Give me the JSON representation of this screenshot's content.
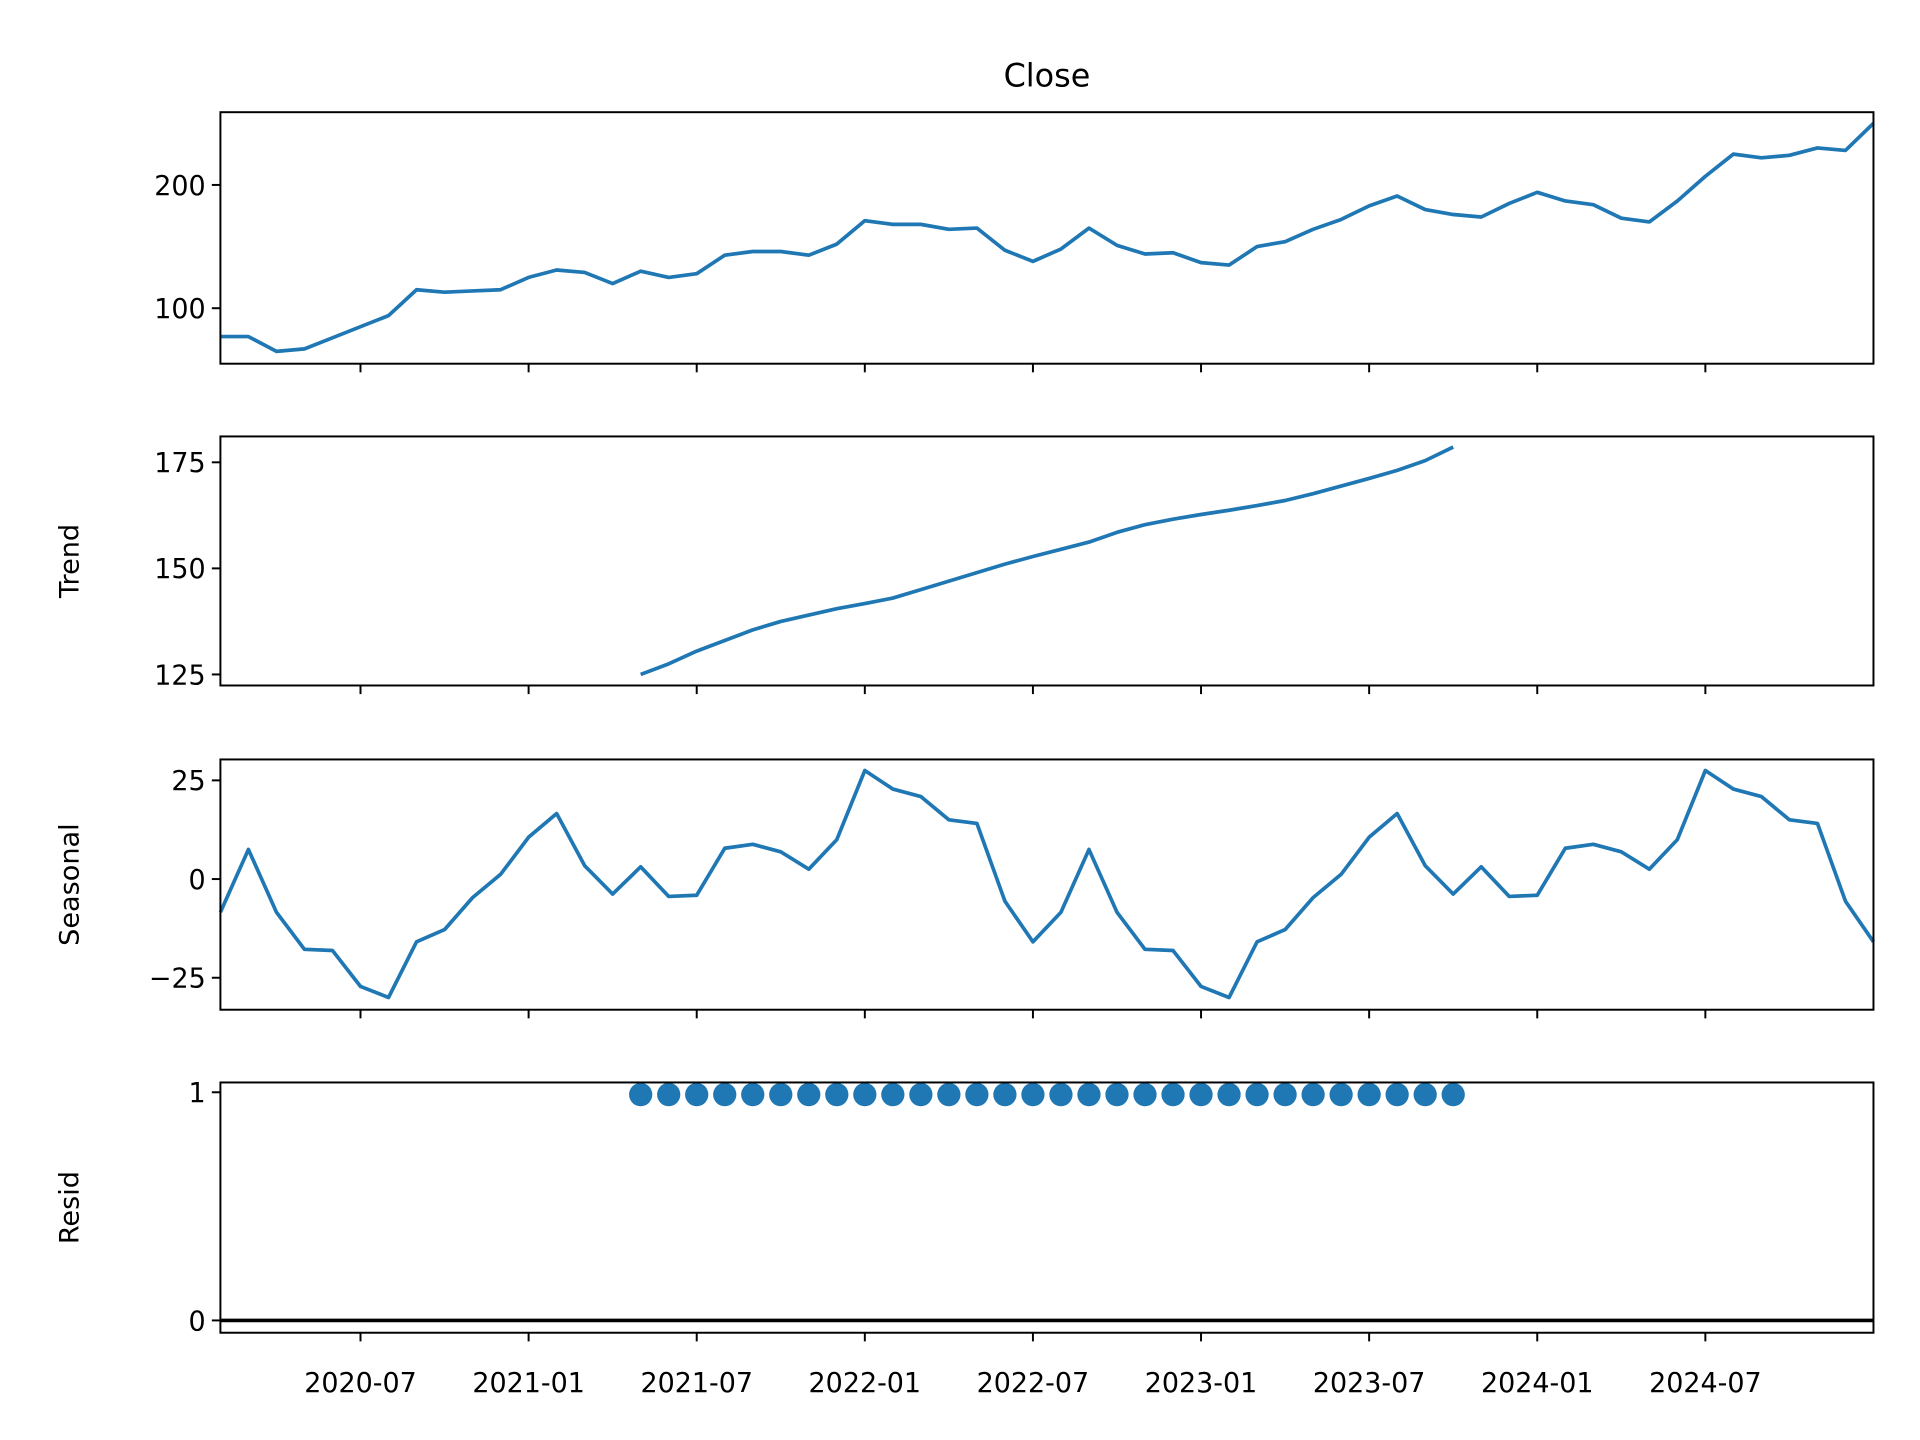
{
  "chart_data": [
    {
      "type": "line",
      "title": "Close",
      "color": "#1f77b4",
      "x": [
        "2020-02",
        "2020-03",
        "2020-04",
        "2020-05",
        "2020-06",
        "2020-07",
        "2020-08",
        "2020-09",
        "2020-10",
        "2020-11",
        "2020-12",
        "2021-01",
        "2021-02",
        "2021-03",
        "2021-04",
        "2021-05",
        "2021-06",
        "2021-07",
        "2021-08",
        "2021-09",
        "2021-10",
        "2021-11",
        "2021-12",
        "2022-01",
        "2022-02",
        "2022-03",
        "2022-04",
        "2022-05",
        "2022-06",
        "2022-07",
        "2022-08",
        "2022-09",
        "2022-10",
        "2022-11",
        "2022-12",
        "2023-01",
        "2023-02",
        "2023-03",
        "2023-04",
        "2023-05",
        "2023-06",
        "2023-07",
        "2023-08",
        "2023-09",
        "2023-10",
        "2023-11",
        "2023-12",
        "2024-01",
        "2024-02",
        "2024-03",
        "2024-04",
        "2024-05",
        "2024-06",
        "2024-07",
        "2024-08",
        "2024-09",
        "2024-10",
        "2024-11",
        "2024-12",
        "2025-01"
      ],
      "values": [
        77,
        77,
        65,
        67,
        76,
        85,
        94,
        115,
        113,
        114,
        115,
        125,
        131,
        129,
        120,
        130,
        125,
        128,
        143,
        146,
        146,
        143,
        152,
        171,
        168,
        168,
        164,
        165,
        147,
        138,
        148,
        165,
        151,
        144,
        145,
        137,
        135,
        150,
        154,
        164,
        172,
        183,
        191,
        180,
        176,
        174,
        185,
        194,
        187,
        184,
        173,
        170,
        187,
        207,
        225,
        222,
        224,
        230,
        228,
        250
      ],
      "xlim": [
        "2020-02",
        "2025-01"
      ],
      "xticks": [
        "2020-07",
        "2021-01",
        "2021-07",
        "2022-01",
        "2022-07",
        "2023-01",
        "2023-07",
        "2024-01",
        "2024-07"
      ],
      "ylim": [
        55,
        259
      ],
      "yticks": [
        100,
        200
      ]
    },
    {
      "type": "line",
      "ylabel": "Trend",
      "color": "#1f77b4",
      "x": [
        "2020-02",
        "2020-03",
        "2020-04",
        "2020-05",
        "2020-06",
        "2020-07",
        "2020-08",
        "2020-09",
        "2020-10",
        "2020-11",
        "2020-12",
        "2021-01",
        "2021-02",
        "2021-03",
        "2021-04",
        "2021-05",
        "2021-06",
        "2021-07",
        "2021-08",
        "2021-09",
        "2021-10",
        "2021-11",
        "2021-12",
        "2022-01",
        "2022-02",
        "2022-03",
        "2022-04",
        "2022-05",
        "2022-06",
        "2022-07",
        "2022-08",
        "2022-09",
        "2022-10",
        "2022-11",
        "2022-12",
        "2023-01",
        "2023-02",
        "2023-03",
        "2023-04",
        "2023-05",
        "2023-06",
        "2023-07",
        "2023-08",
        "2023-09",
        "2023-10",
        "2023-11",
        "2023-12",
        "2024-01",
        "2024-02",
        "2024-03",
        "2024-04",
        "2024-05",
        "2024-06",
        "2024-07",
        "2024-08",
        "2024-09",
        "2024-10",
        "2024-11",
        "2024-12",
        "2025-01"
      ],
      "values": [
        null,
        null,
        null,
        null,
        null,
        null,
        null,
        null,
        null,
        null,
        null,
        null,
        null,
        null,
        null,
        125,
        127.5,
        130.5,
        133,
        135.5,
        137.5,
        139,
        140.5,
        141.7,
        143,
        145,
        147,
        149,
        151,
        152.8,
        154.5,
        156.2,
        158.5,
        160.3,
        161.6,
        162.7,
        163.7,
        164.8,
        166,
        167.6,
        169.4,
        171.2,
        173.1,
        175.4,
        178.6,
        null,
        null,
        null,
        null,
        null,
        null,
        null,
        null,
        null,
        null,
        null,
        null,
        null,
        null,
        null
      ],
      "xlim": [
        "2020-02",
        "2025-01"
      ],
      "xticks": [
        "2020-07",
        "2021-01",
        "2021-07",
        "2022-01",
        "2022-07",
        "2023-01",
        "2023-07",
        "2024-01",
        "2024-07"
      ],
      "ylim": [
        122.4,
        181.1
      ],
      "yticks": [
        125,
        150,
        175
      ]
    },
    {
      "type": "line",
      "ylabel": "Seasonal",
      "color": "#1f77b4",
      "x": [
        "2020-02",
        "2020-03",
        "2020-04",
        "2020-05",
        "2020-06",
        "2020-07",
        "2020-08",
        "2020-09",
        "2020-10",
        "2020-11",
        "2020-12",
        "2021-01",
        "2021-02",
        "2021-03",
        "2021-04",
        "2021-05",
        "2021-06",
        "2021-07",
        "2021-08",
        "2021-09",
        "2021-10",
        "2021-11",
        "2021-12",
        "2022-01",
        "2022-02",
        "2022-03",
        "2022-04",
        "2022-05",
        "2022-06",
        "2022-07",
        "2022-08",
        "2022-09",
        "2022-10",
        "2022-11",
        "2022-12",
        "2023-01",
        "2023-02",
        "2023-03",
        "2023-04",
        "2023-05",
        "2023-06",
        "2023-07",
        "2023-08",
        "2023-09",
        "2023-10",
        "2023-11",
        "2023-12",
        "2024-01",
        "2024-02",
        "2024-03",
        "2024-04",
        "2024-05",
        "2024-06",
        "2024-07",
        "2024-08",
        "2024-09",
        "2024-10",
        "2024-11",
        "2024-12",
        "2025-01"
      ],
      "values": [
        -8.4,
        7.5,
        -8.4,
        -17.8,
        -18.1,
        -27.2,
        -30,
        -15.9,
        -12.8,
        -4.7,
        1.2,
        10.6,
        16.6,
        3.4,
        -3.8,
        3.1,
        -4.4,
        -4.1,
        7.8,
        8.8,
        6.9,
        2.5,
        10,
        27.5,
        22.8,
        20.9,
        15,
        14.1,
        -5.6,
        -15.9,
        -8.4,
        7.5,
        -8.4,
        -17.8,
        -18.1,
        -27.2,
        -30,
        -15.9,
        -12.8,
        -4.7,
        1.2,
        10.6,
        16.6,
        3.4,
        -3.8,
        3.1,
        -4.4,
        -4.1,
        7.8,
        8.8,
        6.9,
        2.5,
        10,
        27.5,
        22.8,
        20.9,
        15,
        14.1,
        -5.6,
        -15.9
      ],
      "xlim": [
        "2020-02",
        "2025-01"
      ],
      "xticks": [
        "2020-07",
        "2021-01",
        "2021-07",
        "2022-01",
        "2022-07",
        "2023-01",
        "2023-07",
        "2024-01",
        "2024-07"
      ],
      "ylim": [
        -33.1,
        30.3
      ],
      "yticks": [
        {
          "value": -25,
          "label": "−25"
        },
        0,
        25
      ]
    },
    {
      "type": "scatter",
      "ylabel": "Resid",
      "color": "#1f77b4",
      "x": [
        "2020-02",
        "2020-03",
        "2020-04",
        "2020-05",
        "2020-06",
        "2020-07",
        "2020-08",
        "2020-09",
        "2020-10",
        "2020-11",
        "2020-12",
        "2021-01",
        "2021-02",
        "2021-03",
        "2021-04",
        "2021-05",
        "2021-06",
        "2021-07",
        "2021-08",
        "2021-09",
        "2021-10",
        "2021-11",
        "2021-12",
        "2022-01",
        "2022-02",
        "2022-03",
        "2022-04",
        "2022-05",
        "2022-06",
        "2022-07",
        "2022-08",
        "2022-09",
        "2022-10",
        "2022-11",
        "2022-12",
        "2023-01",
        "2023-02",
        "2023-03",
        "2023-04",
        "2023-05",
        "2023-06",
        "2023-07",
        "2023-08",
        "2023-09",
        "2023-10",
        "2023-11",
        "2023-12",
        "2024-01",
        "2024-02",
        "2024-03",
        "2024-04",
        "2024-05",
        "2024-06",
        "2024-07",
        "2024-08",
        "2024-09",
        "2024-10",
        "2024-11",
        "2024-12",
        "2025-01"
      ],
      "values": [
        null,
        null,
        null,
        null,
        null,
        null,
        null,
        null,
        null,
        null,
        null,
        null,
        null,
        null,
        null,
        0.99,
        0.99,
        0.99,
        0.99,
        0.99,
        0.99,
        0.99,
        0.99,
        0.99,
        0.99,
        0.99,
        0.99,
        0.99,
        0.99,
        0.99,
        0.99,
        0.99,
        0.99,
        0.99,
        0.99,
        0.99,
        0.99,
        0.99,
        0.99,
        0.99,
        0.99,
        0.99,
        0.99,
        0.99,
        0.99,
        null,
        null,
        null,
        null,
        null,
        null,
        null,
        null,
        null,
        null,
        null,
        null,
        null,
        null,
        null
      ],
      "xlim": [
        "2020-02",
        "2025-01"
      ],
      "xticks": [
        "2020-07",
        "2021-01",
        "2021-07",
        "2022-01",
        "2022-07",
        "2023-01",
        "2023-07",
        "2024-01",
        "2024-07"
      ],
      "ylim": [
        -0.054,
        1.043
      ],
      "yticks": [
        0,
        1
      ]
    }
  ]
}
